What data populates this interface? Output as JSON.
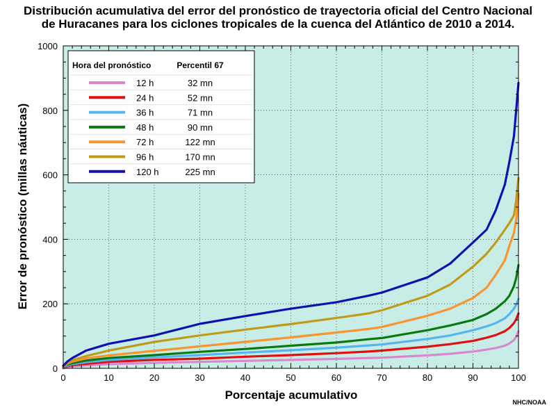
{
  "title": {
    "line1": "Distribución acumulativa del error del pronóstico de trayectoria oficial del Centro Nacional",
    "line2": "de Huracanes para los ciclones tropicales de la cuenca del Atlántico de 2010 a 2014."
  },
  "credit": "NHC/NOAA",
  "colors": {
    "plot_background": "#c8ede6",
    "12h": "#d988d0",
    "24h": "#e01010",
    "36h": "#55b4f2",
    "48h": "#0a7a10",
    "72h": "#f9952f",
    "96h": "#bf9c18",
    "120h": "#1010b0"
  },
  "legend": {
    "col1_header": "Hora del pronóstico",
    "col2_header": "Percentil 67",
    "rows": [
      {
        "hour": "12 h",
        "p67": "32 mn",
        "color": "#d988d0"
      },
      {
        "hour": "24 h",
        "p67": "52 mn",
        "color": "#e01010"
      },
      {
        "hour": "36 h",
        "p67": "71 mn",
        "color": "#55b4f2"
      },
      {
        "hour": "48 h",
        "p67": "90 mn",
        "color": "#0a7a10"
      },
      {
        "hour": "72 h",
        "p67": "122 mn",
        "color": "#f9952f"
      },
      {
        "hour": "96 h",
        "p67": "170 mn",
        "color": "#bf9c18"
      },
      {
        "hour": "120 h",
        "p67": "225 mn",
        "color": "#1010b0"
      }
    ]
  },
  "chart_data": {
    "type": "line",
    "xlabel": "Porcentaje acumulativo",
    "ylabel": "Error de pronóstico (millas náuticas)",
    "xlim": [
      0,
      100
    ],
    "ylim": [
      0,
      1000
    ],
    "xticks": [
      "0",
      "10",
      "20",
      "30",
      "40",
      "50",
      "60",
      "70",
      "80",
      "90",
      "100"
    ],
    "yticks": [
      "0",
      "200",
      "400",
      "600",
      "800",
      "1000"
    ],
    "grid": true,
    "legend_position": "top-left",
    "x": [
      0,
      1,
      2,
      5,
      10,
      20,
      30,
      40,
      50,
      60,
      67,
      70,
      80,
      85,
      90,
      93,
      95,
      97,
      98,
      99,
      99.5,
      100
    ],
    "series": [
      {
        "name": "12 h",
        "color": "#d988d0",
        "values": [
          0,
          4,
          6,
          9,
          13,
          17,
          20,
          23,
          26,
          29,
          32,
          33,
          40,
          45,
          52,
          58,
          63,
          70,
          77,
          88,
          98,
          115
        ]
      },
      {
        "name": "24 h",
        "color": "#e01010",
        "values": [
          2,
          7,
          10,
          14,
          20,
          26,
          30,
          36,
          41,
          47,
          52,
          55,
          67,
          75,
          85,
          95,
          103,
          115,
          125,
          140,
          152,
          170
        ]
      },
      {
        "name": "36 h",
        "color": "#55b4f2",
        "values": [
          3,
          9,
          13,
          19,
          26,
          34,
          41,
          49,
          56,
          64,
          71,
          74,
          91,
          102,
          118,
          130,
          140,
          155,
          168,
          185,
          197,
          215
        ]
      },
      {
        "name": "48 h",
        "color": "#0a7a10",
        "values": [
          4,
          12,
          16,
          24,
          32,
          41,
          51,
          60,
          70,
          80,
          90,
          94,
          118,
          133,
          150,
          168,
          185,
          208,
          225,
          255,
          280,
          320
        ]
      },
      {
        "name": "72 h",
        "color": "#f9952f",
        "values": [
          5,
          15,
          21,
          31,
          40,
          54,
          68,
          82,
          96,
          111,
          122,
          128,
          163,
          185,
          218,
          250,
          290,
          335,
          380,
          420,
          460,
          540
        ]
      },
      {
        "name": "96 h",
        "color": "#bf9c18",
        "values": [
          6,
          18,
          25,
          38,
          55,
          82,
          102,
          120,
          137,
          156,
          170,
          180,
          225,
          260,
          315,
          355,
          390,
          430,
          450,
          475,
          520,
          590
        ]
      },
      {
        "name": "120 h",
        "color": "#1010b0",
        "values": [
          8,
          22,
          32,
          55,
          76,
          102,
          138,
          162,
          185,
          205,
          225,
          235,
          282,
          325,
          390,
          430,
          490,
          570,
          640,
          720,
          800,
          885
        ]
      }
    ]
  }
}
